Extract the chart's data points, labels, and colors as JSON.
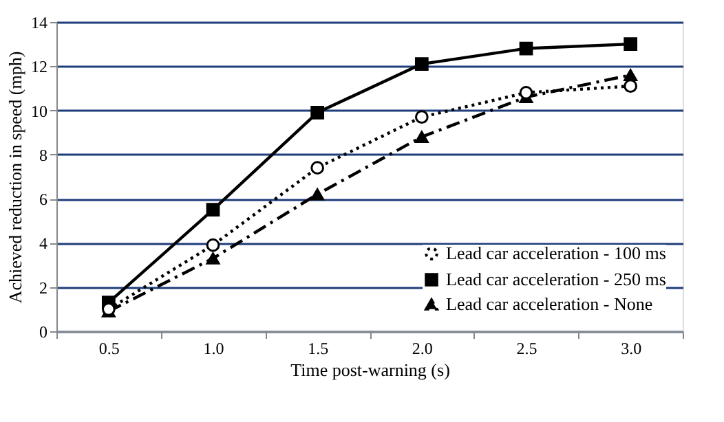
{
  "chart_data": {
    "type": "line",
    "xlabel": "Time post-warning (s)",
    "ylabel": "Achieved reduction in speed (mph)",
    "categories": [
      "0.5",
      "1.0",
      "1.5",
      "2.0",
      "2.5",
      "3.0"
    ],
    "series": [
      {
        "name": "Lead car acceleration - 100 ms",
        "color": "#000000",
        "marker": "circle",
        "line_style": "dotted",
        "values": [
          1.0,
          3.9,
          7.4,
          9.7,
          10.8,
          11.1
        ]
      },
      {
        "name": "Lead car acceleration - 250 ms",
        "color": "#000000",
        "marker": "square",
        "line_style": "solid",
        "values": [
          1.3,
          5.5,
          9.9,
          12.1,
          12.8,
          13.0
        ]
      },
      {
        "name": "Lead car acceleration - None",
        "color": "#000000",
        "marker": "triangle",
        "line_style": "dashed",
        "values": [
          0.9,
          3.3,
          6.2,
          8.8,
          10.6,
          11.6
        ]
      }
    ],
    "ylim": [
      0,
      14
    ],
    "yticks": [
      0,
      2,
      4,
      6,
      8,
      10,
      12,
      14
    ],
    "grid": "y",
    "legend": "bottom right"
  }
}
